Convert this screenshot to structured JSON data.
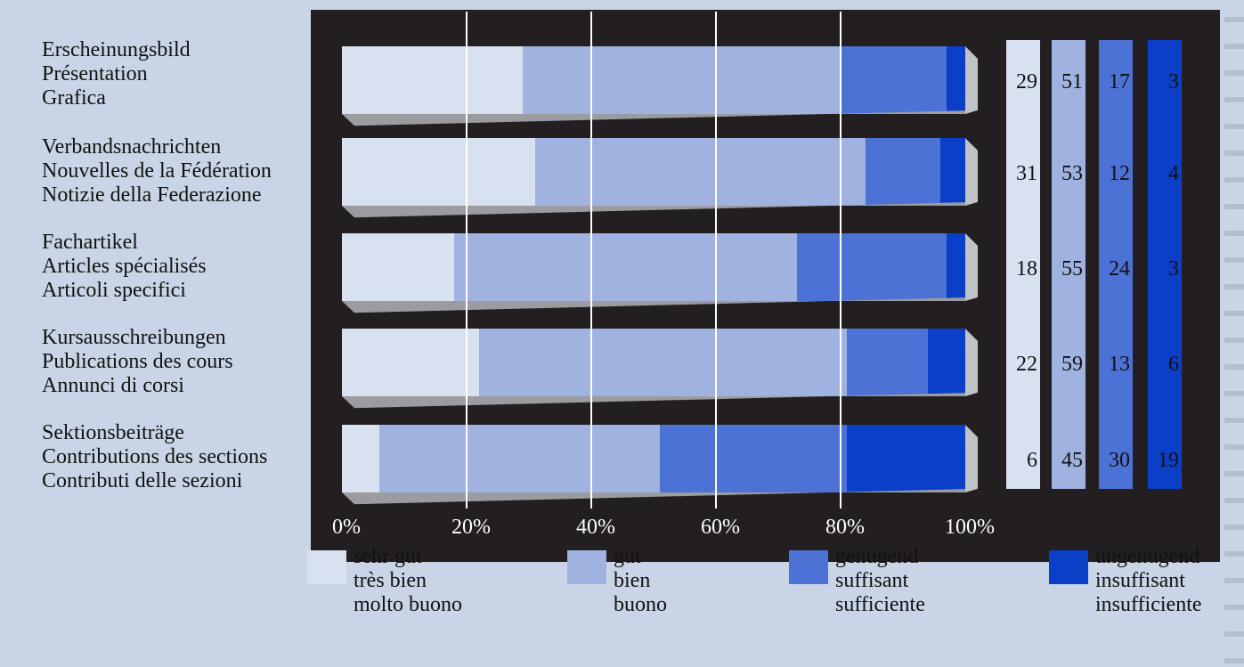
{
  "chart_data": {
    "type": "bar",
    "stacked": true,
    "orientation": "horizontal",
    "categories": [
      [
        "Erscheinungsbild",
        "Présentation",
        "Grafica"
      ],
      [
        "Verbandsnachrichten",
        "Nouvelles de la Fédération",
        "Notizie della Federazione"
      ],
      [
        "Fachartikel",
        "Articles spécialisés",
        "Articoli specifici"
      ],
      [
        "Kursausschreibungen",
        "Publications des cours",
        "Annunci di corsi"
      ],
      [
        "Sektionsbeiträge",
        "Contributions des sections",
        "Contributi delle sezioni"
      ]
    ],
    "series": [
      {
        "name": [
          "sehr gut",
          "très bien",
          "molto buono"
        ],
        "color": "#d8e1f0",
        "values": [
          29,
          31,
          18,
          22,
          6
        ]
      },
      {
        "name": [
          "gut",
          "bien",
          "buono"
        ],
        "color": "#9fb2e0",
        "values": [
          51,
          53,
          55,
          59,
          45
        ]
      },
      {
        "name": [
          "genügend",
          "suffisant",
          "sufficiente"
        ],
        "color": "#4d72d6",
        "values": [
          17,
          12,
          24,
          13,
          30
        ]
      },
      {
        "name": [
          "ungenügend",
          "insuffisant",
          "insufficiente"
        ],
        "color": "#0b3fc8",
        "values": [
          3,
          4,
          3,
          6,
          19
        ]
      }
    ],
    "xtick_labels": [
      "0%",
      "20%",
      "40%",
      "60%",
      "80%",
      "100%"
    ],
    "xlim": [
      0,
      100
    ],
    "grid": true,
    "legend_position": "bottom"
  }
}
